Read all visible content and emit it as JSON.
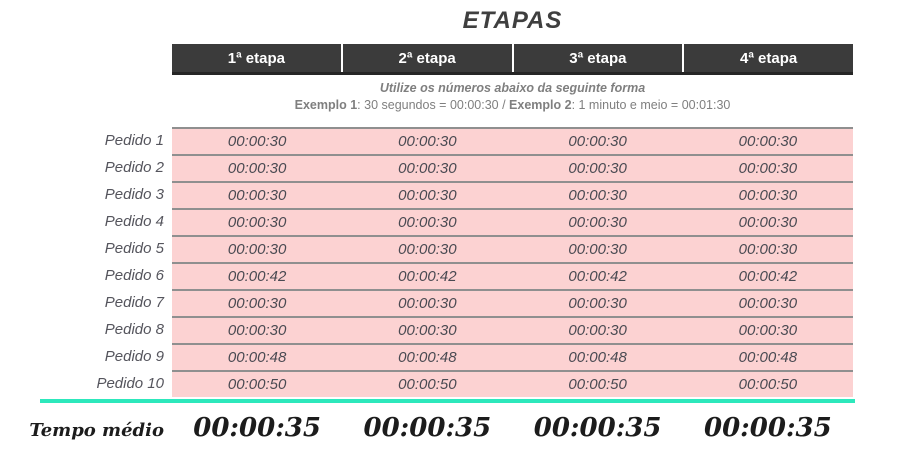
{
  "title": "ETAPAS",
  "header": {
    "columns": [
      "1ª etapa",
      "2ª etapa",
      "3ª etapa",
      "4ª etapa"
    ]
  },
  "instructions": {
    "line1": "Utilize os números abaixo da seguinte forma",
    "ex1_label": "Exemplo 1",
    "ex1_rest": ": 30 segundos = 00:00:30 / ",
    "ex2_label": "Exemplo 2",
    "ex2_rest": ": 1 minuto e meio = 00:01:30"
  },
  "table": {
    "rows": [
      {
        "label": "Pedido 1",
        "values": [
          "00:00:30",
          "00:00:30",
          "00:00:30",
          "00:00:30"
        ]
      },
      {
        "label": "Pedido 2",
        "values": [
          "00:00:30",
          "00:00:30",
          "00:00:30",
          "00:00:30"
        ]
      },
      {
        "label": "Pedido 3",
        "values": [
          "00:00:30",
          "00:00:30",
          "00:00:30",
          "00:00:30"
        ]
      },
      {
        "label": "Pedido 4",
        "values": [
          "00:00:30",
          "00:00:30",
          "00:00:30",
          "00:00:30"
        ]
      },
      {
        "label": "Pedido 5",
        "values": [
          "00:00:30",
          "00:00:30",
          "00:00:30",
          "00:00:30"
        ]
      },
      {
        "label": "Pedido 6",
        "values": [
          "00:00:42",
          "00:00:42",
          "00:00:42",
          "00:00:42"
        ]
      },
      {
        "label": "Pedido 7",
        "values": [
          "00:00:30",
          "00:00:30",
          "00:00:30",
          "00:00:30"
        ]
      },
      {
        "label": "Pedido 8",
        "values": [
          "00:00:30",
          "00:00:30",
          "00:00:30",
          "00:00:30"
        ]
      },
      {
        "label": "Pedido 9",
        "values": [
          "00:00:48",
          "00:00:48",
          "00:00:48",
          "00:00:48"
        ]
      },
      {
        "label": "Pedido 10",
        "values": [
          "00:00:50",
          "00:00:50",
          "00:00:50",
          "00:00:50"
        ]
      }
    ]
  },
  "summary": {
    "label": "Tempo médio",
    "values": [
      "00:00:35",
      "00:00:35",
      "00:00:35",
      "00:00:35"
    ]
  },
  "colors": {
    "header-bg": "#3b3b3b",
    "header-text": "#ffffff",
    "cell-bg": "#fcd2d2",
    "cell-text": "#4a4a52",
    "row-divider": "#8f8f8f",
    "label-text": "#55555d",
    "muted-text": "#7f7f7f",
    "title-text": "#3f3f3f",
    "summary-text": "#1c1c1c",
    "accent-teal": "#2de8bc"
  }
}
